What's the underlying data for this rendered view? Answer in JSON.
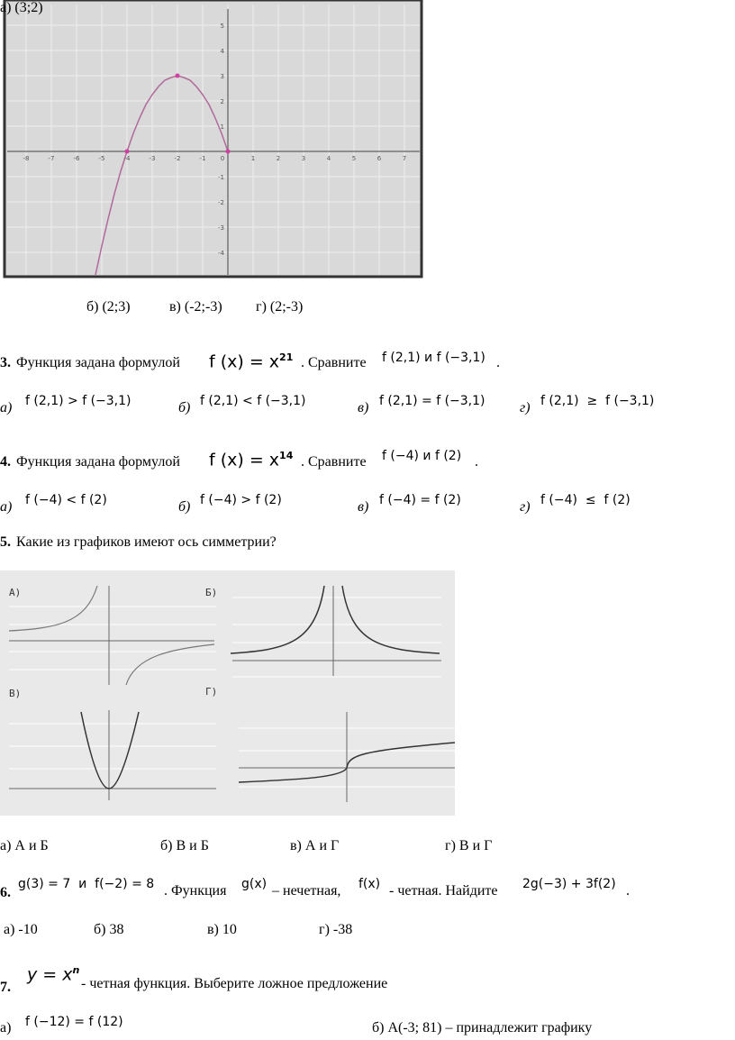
{
  "graph": {
    "x_ticks": [
      -8,
      -7,
      -6,
      -5,
      -4,
      -3,
      -2,
      -1,
      0,
      1,
      2,
      3,
      4,
      5,
      6,
      7
    ],
    "y_ticks": [
      5,
      4,
      3,
      2,
      1,
      -1,
      -2,
      -3,
      -4
    ]
  },
  "q2": {
    "options": [
      "а) (3;2)",
      "б) (2;3)",
      "в) (-2;-3)",
      "г) (2;-3)"
    ]
  },
  "q3": {
    "number": "3.",
    "text": "Функция задана формулой",
    "formula": "f (x) = x",
    "exponent": "21",
    "compare": ". Сравните",
    "expr": "f (2,1) и f (−3,1)",
    "end": ".",
    "options": [
      {
        "letter": "а)",
        "expr": "f (2,1) > f (−3,1)"
      },
      {
        "letter": "б)",
        "expr": "f (2,1) < f (−3,1)"
      },
      {
        "letter": "в)",
        "expr": "f (2,1) = f (−3,1)"
      },
      {
        "letter": "г)",
        "expr": "f (2,1)  ≥  f (−3,1)"
      }
    ]
  },
  "q4": {
    "number": "4.",
    "text": "Функция задана формулой",
    "formula": "f (x) = x",
    "exponent": "14",
    "compare": ". Сравните",
    "expr": "f (−4) и f (2)",
    "end": ".",
    "options": [
      {
        "letter": "а)",
        "expr": "f (−4) < f (2)"
      },
      {
        "letter": "б)",
        "expr": "f (−4) > f (2)"
      },
      {
        "letter": "в)",
        "expr": "f (−4) = f (2)"
      },
      {
        "letter": "г)",
        "expr": "f (−4)  ≤  f (2)"
      }
    ]
  },
  "q5": {
    "number": "5.",
    "text": "Какие из графиков имеют ось симметрии?",
    "panels": [
      "А)",
      "Б)",
      "В)",
      "Г)"
    ],
    "options": [
      "а) А и Б",
      "б) В и Б",
      "в) А и Г",
      "г) В и Г"
    ]
  },
  "q6": {
    "number": "6.",
    "given": "g(3) = 7  и  f(−2) = 8",
    "t1": ". Функция",
    "g": "g(x)",
    "t2": "– нечетная,",
    "f": "f(x)",
    "t3": "- четная. Найдите",
    "expr": "2g(−3) + 3f(2)",
    "end": ".",
    "options": [
      "а) -10",
      "б) 38",
      "в) 10",
      "г) -38"
    ]
  },
  "q7": {
    "number": "7.",
    "formula": "y = x",
    "exponent": "n",
    "text": "- четная функция. Выберите ложное предложение",
    "option_a_letter": "а)",
    "option_a_expr": "f (−12) = f (12)",
    "option_b": "б) А(-3; 81) – принадлежит графику"
  }
}
